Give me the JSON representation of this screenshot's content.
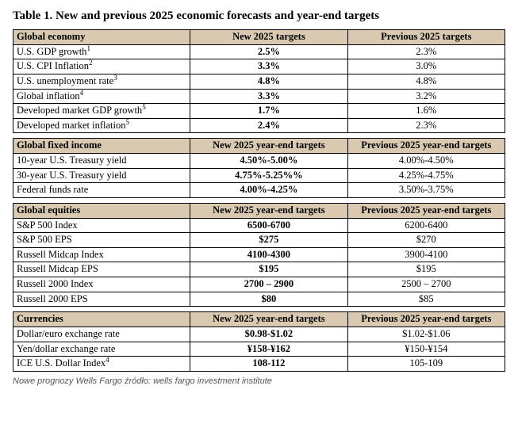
{
  "title": "Table 1. New and previous 2025 economic forecasts and year-end targets",
  "caption": "Nowe prognozy Wells Fargo źródło: wells fargo investment institute",
  "sections": [
    {
      "header": {
        "label": "Global economy",
        "col_new": "New 2025 targets",
        "col_prev": "Previous 2025 targets"
      },
      "rows": [
        {
          "label": "U.S. GDP growth",
          "sup": "1",
          "new": "2.5%",
          "prev": "2.3%"
        },
        {
          "label": "U.S. CPI Inflation",
          "sup": "2",
          "new": "3.3%",
          "prev": "3.0%"
        },
        {
          "label": "U.S. unemployment rate",
          "sup": "3",
          "new": "4.8%",
          "prev": "4.8%"
        },
        {
          "label": "Global inflation",
          "sup": "4",
          "new": "3.3%",
          "prev": "3.2%"
        },
        {
          "label": "Developed market GDP growth",
          "sup": "5",
          "new": "1.7%",
          "prev": "1.6%"
        },
        {
          "label": "Developed market inflation",
          "sup": "5",
          "new": "2.4%",
          "prev": "2.3%"
        }
      ]
    },
    {
      "header": {
        "label": "Global fixed income",
        "col_new": "New 2025 year-end targets",
        "col_prev": "Previous 2025 year-end targets"
      },
      "rows": [
        {
          "label": "10-year U.S. Treasury yield",
          "sup": "",
          "new": "4.50%-5.00%",
          "prev": "4.00%-4.50%"
        },
        {
          "label": "30-year U.S. Treasury yield",
          "sup": "",
          "new": "4.75%-5.25%%",
          "prev": "4.25%-4.75%"
        },
        {
          "label": "Federal funds rate",
          "sup": "",
          "new": "4.00%-4.25%",
          "prev": "3.50%-3.75%"
        }
      ]
    },
    {
      "header": {
        "label": "Global equities",
        "col_new": "New 2025 year-end targets",
        "col_prev": "Previous 2025 year-end targets"
      },
      "rows": [
        {
          "label": "S&P 500 Index",
          "sup": "",
          "new": "6500-6700",
          "prev": "6200-6400"
        },
        {
          "label": "S&P 500 EPS",
          "sup": "",
          "new": "$275",
          "prev": "$270"
        },
        {
          "label": "Russell Midcap Index",
          "sup": "",
          "new": "4100-4300",
          "prev": "3900-4100"
        },
        {
          "label": "Russell Midcap EPS",
          "sup": "",
          "new": "$195",
          "prev": "$195"
        },
        {
          "label": "Russell 2000 Index",
          "sup": "",
          "new": "2700 – 2900",
          "prev": "2500 – 2700"
        },
        {
          "label": "Russell 2000 EPS",
          "sup": "",
          "new": "$80",
          "prev": "$85"
        }
      ]
    },
    {
      "header": {
        "label": "Currencies",
        "col_new": "New 2025 year-end targets",
        "col_prev": "Previous 2025 year-end targets"
      },
      "rows": [
        {
          "label": "Dollar/euro exchange rate",
          "sup": "",
          "new": "$0.98-$1.02",
          "prev": "$1.02-$1.06"
        },
        {
          "label": "Yen/dollar exchange rate",
          "sup": "",
          "new": "¥158-¥162",
          "prev": "¥150-¥154"
        },
        {
          "label": "ICE U.S. Dollar Index",
          "sup": "4",
          "new": "108-112",
          "prev": "105-109"
        }
      ]
    }
  ]
}
